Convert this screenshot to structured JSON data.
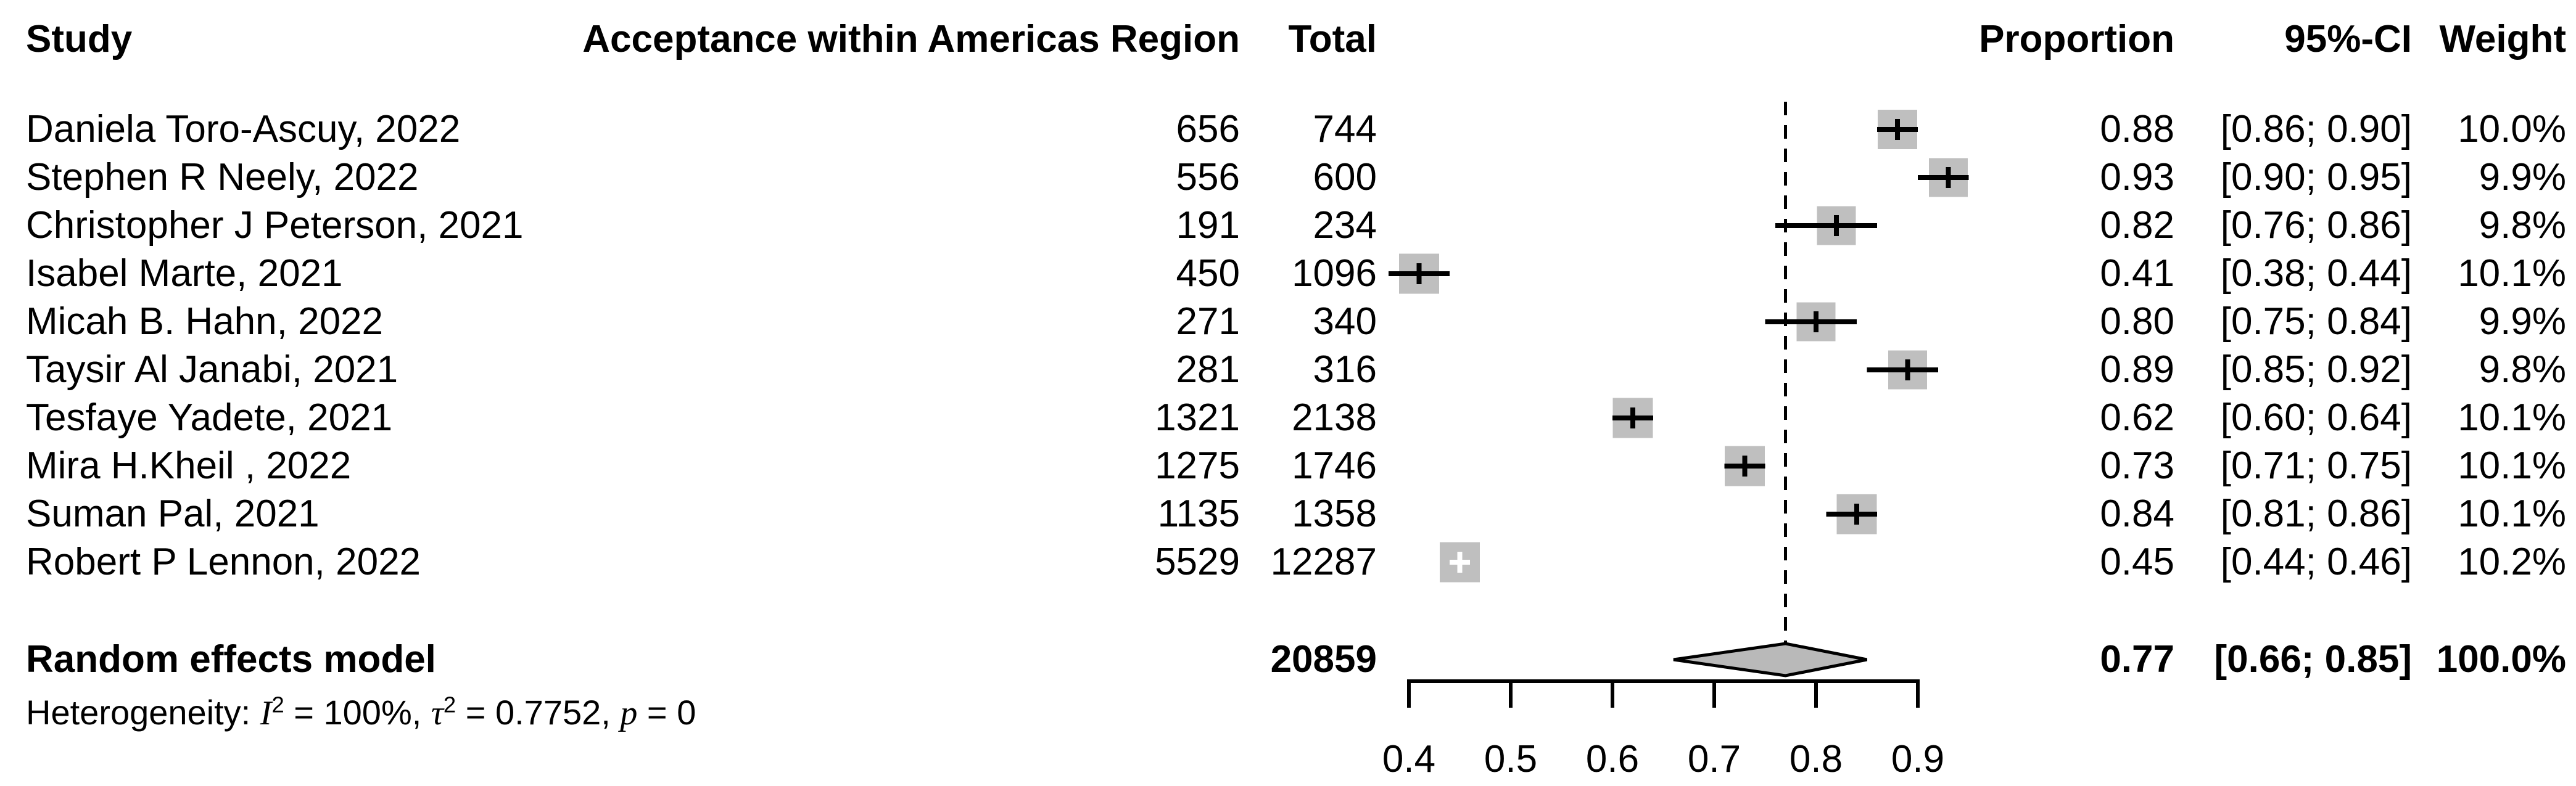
{
  "chart_data": {
    "type": "forest",
    "effect_measure": "Proportion",
    "columns": {
      "study": "Study",
      "events": "Acceptance within Americas Region",
      "total": "Total",
      "proportion": "Proportion",
      "ci": "95%-CI",
      "weight": "Weight"
    },
    "studies": [
      {
        "name": "Daniela Toro-Ascuy, 2022",
        "events": 656,
        "total": 744,
        "proportion": 0.88,
        "ci_low": 0.86,
        "ci_high": 0.9,
        "weight": 10.0,
        "proportion_label": "0.88",
        "ci_label": "[0.86; 0.90]",
        "weight_label": "10.0%"
      },
      {
        "name": "Stephen R Neely, 2022",
        "events": 556,
        "total": 600,
        "proportion": 0.93,
        "ci_low": 0.9,
        "ci_high": 0.95,
        "weight": 9.9,
        "proportion_label": "0.93",
        "ci_label": "[0.90; 0.95]",
        "weight_label": "9.9%"
      },
      {
        "name": "Christopher J Peterson, 2021",
        "events": 191,
        "total": 234,
        "proportion": 0.82,
        "ci_low": 0.76,
        "ci_high": 0.86,
        "weight": 9.8,
        "proportion_label": "0.82",
        "ci_label": "[0.76; 0.86]",
        "weight_label": "9.8%"
      },
      {
        "name": "Isabel Marte, 2021",
        "events": 450,
        "total": 1096,
        "proportion": 0.41,
        "ci_low": 0.38,
        "ci_high": 0.44,
        "weight": 10.1,
        "proportion_label": "0.41",
        "ci_label": "[0.38; 0.44]",
        "weight_label": "10.1%"
      },
      {
        "name": "Micah B. Hahn, 2022",
        "events": 271,
        "total": 340,
        "proportion": 0.8,
        "ci_low": 0.75,
        "ci_high": 0.84,
        "weight": 9.9,
        "proportion_label": "0.80",
        "ci_label": "[0.75; 0.84]",
        "weight_label": "9.9%"
      },
      {
        "name": "Taysir Al Janabi, 2021",
        "events": 281,
        "total": 316,
        "proportion": 0.89,
        "ci_low": 0.85,
        "ci_high": 0.92,
        "weight": 9.8,
        "proportion_label": "0.89",
        "ci_label": "[0.85; 0.92]",
        "weight_label": "9.8%"
      },
      {
        "name": "Tesfaye Yadete, 2021",
        "events": 1321,
        "total": 2138,
        "proportion": 0.62,
        "ci_low": 0.6,
        "ci_high": 0.64,
        "weight": 10.1,
        "proportion_label": "0.62",
        "ci_label": "[0.60; 0.64]",
        "weight_label": "10.1%"
      },
      {
        "name": "Mira H.Kheil , 2022",
        "events": 1275,
        "total": 1746,
        "proportion": 0.73,
        "ci_low": 0.71,
        "ci_high": 0.75,
        "weight": 10.1,
        "proportion_label": "0.73",
        "ci_label": "[0.71; 0.75]",
        "weight_label": "10.1%"
      },
      {
        "name": "Suman Pal, 2021",
        "events": 1135,
        "total": 1358,
        "proportion": 0.84,
        "ci_low": 0.81,
        "ci_high": 0.86,
        "weight": 10.1,
        "proportion_label": "0.84",
        "ci_label": "[0.81; 0.86]",
        "weight_label": "10.1%"
      },
      {
        "name": "Robert P Lennon, 2022",
        "events": 5529,
        "total": 12287,
        "proportion": 0.45,
        "ci_low": 0.44,
        "ci_high": 0.46,
        "weight": 10.2,
        "proportion_label": "0.45",
        "ci_label": "[0.44; 0.46]",
        "weight_label": "10.2%"
      }
    ],
    "summary": {
      "label": "Random effects model",
      "total": 20859,
      "proportion": 0.77,
      "ci_low": 0.66,
      "ci_high": 0.85,
      "proportion_label": "0.77",
      "ci_label": "[0.66; 0.85]",
      "weight_label": "100.0%"
    },
    "heterogeneity": {
      "prefix": "Heterogeneity: ",
      "i_sym": "I",
      "i_sup": "2",
      "seg1": " = 100%, ",
      "tau_sym": "τ",
      "tau_sup": "2",
      "seg2": " = 0.7752, ",
      "p_sym": "p",
      "seg3": " = 0"
    },
    "axis": {
      "min": 0.4,
      "max": 0.9,
      "ticks": [
        0.4,
        0.5,
        0.6,
        0.7,
        0.8,
        0.9
      ],
      "tick_labels": [
        "0.4",
        "0.5",
        "0.6",
        "0.7",
        "0.8",
        "0.9"
      ],
      "grid": false
    },
    "colors": {
      "square_fill": "#bfbfbf",
      "diamond_fill": "#b9b9b9",
      "line": "#000000",
      "hidden_marker": "#ffffff"
    }
  }
}
